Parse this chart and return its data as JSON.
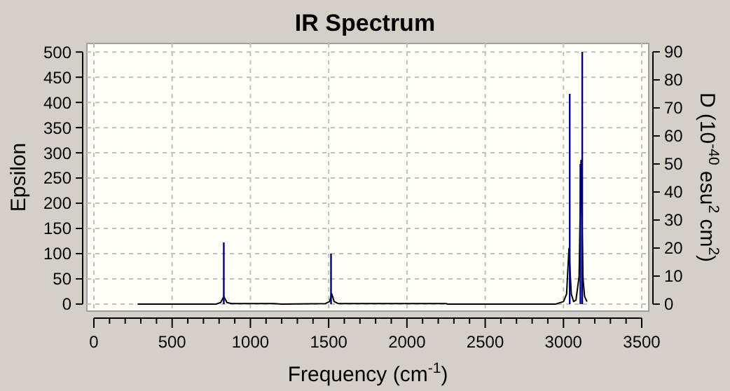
{
  "chart_data": {
    "type": "line",
    "title": "IR Spectrum",
    "xlabel": "Frequency (cm$^{-1}$)",
    "ylabel": "Epsilon",
    "y2label": "D (10$^{-40}$ esu$^{2}$ cm$^{2}$)",
    "xlim": [
      0,
      3500
    ],
    "xticks": [
      0,
      {
        "value": 100,
        "label": null
      },
      {
        "value": 200,
        "label": null
      },
      {
        "value": 300,
        "label": null
      },
      {
        "value": 400,
        "label": null
      },
      500,
      {
        "value": 600,
        "label": null
      },
      {
        "value": 700,
        "label": null
      },
      {
        "value": 800,
        "label": null
      },
      {
        "value": 900,
        "label": null
      },
      1000,
      {
        "value": 1100,
        "label": null
      },
      {
        "value": 1200,
        "label": null
      },
      {
        "value": 1300,
        "label": null
      },
      {
        "value": 1400,
        "label": null
      },
      1500,
      {
        "value": 1600,
        "label": null
      },
      {
        "value": 1700,
        "label": null
      },
      {
        "value": 1800,
        "label": null
      },
      {
        "value": 1900,
        "label": null
      },
      2000,
      {
        "value": 2100,
        "label": null
      },
      {
        "value": 2200,
        "label": null
      },
      {
        "value": 2300,
        "label": null
      },
      {
        "value": 2400,
        "label": null
      },
      2500,
      {
        "value": 2600,
        "label": null
      },
      {
        "value": 2700,
        "label": null
      },
      {
        "value": 2800,
        "label": null
      },
      {
        "value": 2900,
        "label": null
      },
      3000,
      {
        "value": 3100,
        "label": null
      },
      {
        "value": 3200,
        "label": null
      },
      {
        "value": 3300,
        "label": null
      },
      {
        "value": 3400,
        "label": null
      },
      3500
    ],
    "ylim": [
      -14,
      517
    ],
    "yticks": [
      0,
      50,
      100,
      150,
      200,
      250,
      300,
      350,
      400,
      450,
      500
    ],
    "y2lim": [
      -2.5,
      93
    ],
    "y2ticks": [
      0,
      10,
      20,
      30,
      40,
      50,
      60,
      70,
      80,
      90
    ],
    "grid": true,
    "series": [
      {
        "color": "#000000",
        "x": [
          280,
          780,
          810,
          830,
          850,
          880,
          1150,
          1200,
          1480,
          1505,
          1520,
          1535,
          1560,
          2250,
          2260,
          2950,
          3000,
          3020,
          3035,
          3050,
          3065,
          3080,
          3100,
          3112,
          3125,
          3135,
          3150
        ],
        "values": [
          0,
          0,
          3,
          15,
          3,
          1,
          1,
          0,
          1,
          5,
          20,
          5,
          1,
          1,
          0,
          0,
          5,
          20,
          110,
          20,
          5,
          8,
          55,
          285,
          50,
          15,
          5
        ]
      },
      {
        "type": "bar",
        "axis": "y2",
        "color": "#000080",
        "x": [
          830,
          1515,
          3040,
          3108,
          3120
        ],
        "values": [
          22,
          18,
          75,
          50,
          90
        ]
      }
    ]
  }
}
